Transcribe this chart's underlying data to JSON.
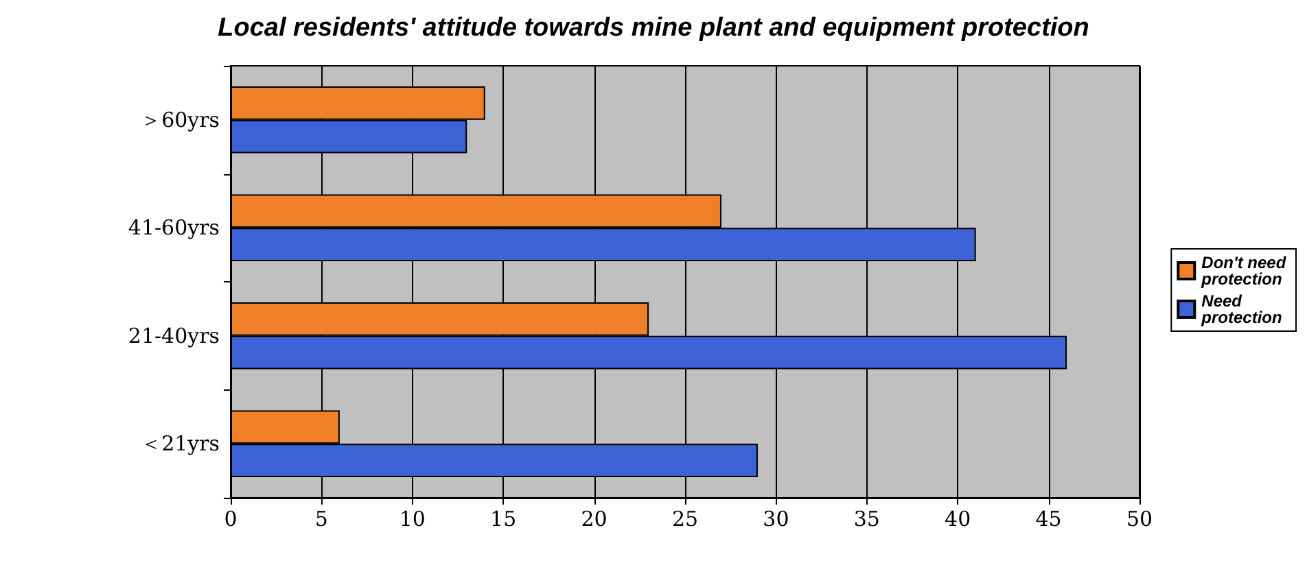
{
  "chart_data": {
    "type": "bar",
    "orientation": "horizontal",
    "title": "Local residents' attitude towards mine plant and equipment protection",
    "categories": [
      "＞60yrs",
      "41-60yrs",
      "21-40yrs",
      "＜21yrs"
    ],
    "series": [
      {
        "name": "Don't need protection",
        "color": "#f07f2a",
        "values": [
          14,
          27,
          23,
          6
        ]
      },
      {
        "name": "Need protection",
        "color": "#3d63d6",
        "values": [
          13,
          41,
          46,
          29
        ]
      }
    ],
    "xlim": [
      0,
      50
    ],
    "xticks": [
      0,
      5,
      10,
      15,
      20,
      25,
      30,
      35,
      40,
      45,
      50
    ],
    "grid": "x",
    "legend": "right"
  }
}
